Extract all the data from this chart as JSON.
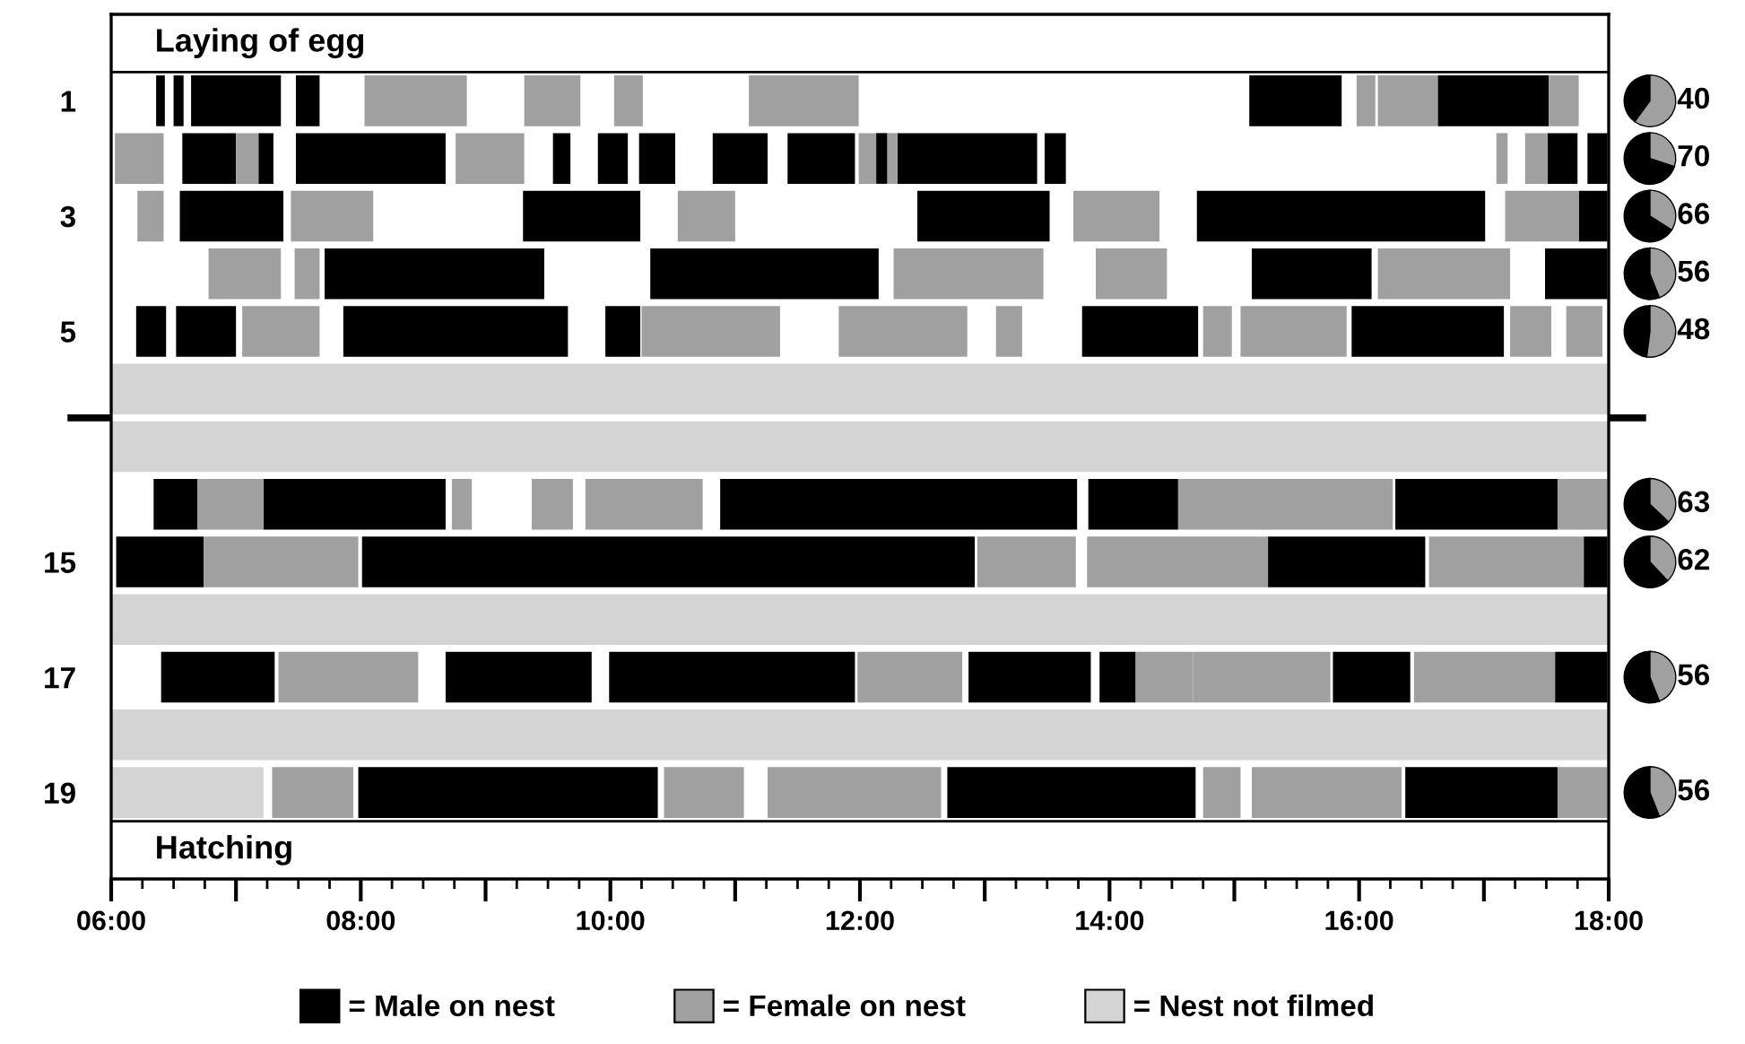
{
  "chart_data": [
    {
      "type": "bar",
      "orientation": "horizontal",
      "categories": [
        null,
        "1",
        null,
        "3",
        null,
        "5",
        null,
        null,
        null,
        "15",
        null,
        "17",
        null,
        "19",
        null
      ],
      "xlim": [
        6,
        18
      ],
      "xticks": [
        {
          "value": 6,
          "label": "06:00"
        },
        {
          "value": 7,
          "label": null
        },
        {
          "value": 8,
          "label": "08:00"
        },
        {
          "value": 9,
          "label": null
        },
        {
          "value": 10,
          "label": "10:00"
        },
        {
          "value": 11,
          "label": null
        },
        {
          "value": 12,
          "label": "12:00"
        },
        {
          "value": 13,
          "label": null
        },
        {
          "value": 14,
          "label": "14:00"
        },
        {
          "value": 15,
          "label": null
        },
        {
          "value": 16,
          "label": "16:00"
        },
        {
          "value": 17,
          "label": null
        },
        {
          "value": 18,
          "label": "18:00"
        }
      ],
      "annotations": [
        "Laying of egg",
        "Hatching"
      ],
      "legend": "bottom",
      "series": [
        {
          "name": "= Male on nest",
          "color": "#000000",
          "base": [
            null,
            6.36,
            6.57,
            6.55,
            7.71,
            6.2,
            null,
            null,
            6.34,
            6.04,
            null,
            6.4,
            null,
            7.98,
            null
          ],
          "values": [
            null,
            0.07,
            0.43,
            0.83,
            1.76,
            0.24,
            null,
            null,
            0.35,
            0.7,
            null,
            0.91,
            null,
            2.4,
            null
          ]
        },
        {
          "color": "#000000",
          "base": [
            null,
            6.5,
            7.18,
            9.3,
            10.32,
            6.52,
            null,
            null,
            7.22,
            8.01,
            null,
            8.68,
            null,
            12.7,
            null
          ],
          "values": [
            null,
            0.08,
            0.12,
            0.94,
            1.83,
            0.48,
            null,
            null,
            1.46,
            4.91,
            null,
            1.17,
            null,
            1.99,
            null
          ]
        },
        {
          "color": "#000000",
          "base": [
            null,
            6.64,
            7.48,
            12.46,
            15.14,
            7.86,
            null,
            null,
            10.88,
            15.27,
            null,
            9.99,
            null,
            16.37,
            null
          ],
          "values": [
            null,
            0.72,
            1.2,
            1.06,
            0.96,
            1.8,
            null,
            null,
            2.86,
            1.26,
            null,
            1.97,
            null,
            1.22,
            null
          ]
        },
        {
          "color": "#000000",
          "base": [
            null,
            7.48,
            9.54,
            14.7,
            17.49,
            9.96,
            null,
            null,
            13.83,
            17.8,
            null,
            12.87,
            null,
            null,
            null
          ],
          "values": [
            null,
            0.19,
            0.14,
            2.31,
            0.5,
            0.28,
            null,
            null,
            0.72,
            0.19,
            null,
            0.98,
            null,
            null,
            null
          ]
        },
        {
          "color": "#000000",
          "base": [
            null,
            15.12,
            9.9,
            17.76,
            null,
            13.78,
            null,
            null,
            16.29,
            null,
            null,
            13.92,
            null,
            null,
            null
          ],
          "values": [
            null,
            0.74,
            0.24,
            0.23,
            null,
            0.93,
            null,
            null,
            1.3,
            null,
            null,
            0.29,
            null,
            null,
            null
          ]
        },
        {
          "color": "#000000",
          "base": [
            null,
            16.63,
            10.23,
            null,
            null,
            15.94,
            null,
            null,
            null,
            null,
            null,
            15.79,
            null,
            null,
            null
          ],
          "values": [
            null,
            0.89,
            0.29,
            null,
            null,
            1.22,
            null,
            null,
            null,
            null,
            null,
            0.62,
            null,
            null,
            null
          ]
        },
        {
          "color": "#000000",
          "base": [
            null,
            null,
            10.82,
            null,
            null,
            null,
            null,
            null,
            null,
            null,
            null,
            17.57,
            null,
            null,
            null
          ],
          "values": [
            null,
            null,
            0.44,
            null,
            null,
            null,
            null,
            null,
            null,
            null,
            null,
            0.42,
            null,
            null,
            null
          ]
        },
        {
          "color": "#000000",
          "base": [
            null,
            null,
            11.42,
            null,
            null,
            null,
            null,
            null,
            null,
            null,
            null,
            null,
            null,
            null,
            null
          ],
          "values": [
            null,
            null,
            0.54,
            null,
            null,
            null,
            null,
            null,
            null,
            null,
            null,
            null,
            null,
            null,
            null
          ]
        },
        {
          "color": "#000000",
          "base": [
            null,
            null,
            12.13,
            null,
            null,
            null,
            null,
            null,
            null,
            null,
            null,
            null,
            null,
            null,
            null
          ],
          "values": [
            null,
            null,
            0.09,
            null,
            null,
            null,
            null,
            null,
            null,
            null,
            null,
            null,
            null,
            null,
            null
          ]
        },
        {
          "color": "#000000",
          "base": [
            null,
            null,
            12.3,
            null,
            null,
            null,
            null,
            null,
            null,
            null,
            null,
            null,
            null,
            null,
            null
          ],
          "values": [
            null,
            null,
            1.12,
            null,
            null,
            null,
            null,
            null,
            null,
            null,
            null,
            null,
            null,
            null,
            null
          ]
        },
        {
          "color": "#000000",
          "base": [
            null,
            null,
            13.48,
            null,
            null,
            null,
            null,
            null,
            null,
            null,
            null,
            null,
            null,
            null,
            null
          ],
          "values": [
            null,
            null,
            0.17,
            null,
            null,
            null,
            null,
            null,
            null,
            null,
            null,
            null,
            null,
            null,
            null
          ]
        },
        {
          "color": "#000000",
          "base": [
            null,
            null,
            17.51,
            null,
            null,
            null,
            null,
            null,
            null,
            null,
            null,
            null,
            null,
            null,
            null
          ],
          "values": [
            null,
            null,
            0.24,
            null,
            null,
            null,
            null,
            null,
            null,
            null,
            null,
            null,
            null,
            null,
            null
          ]
        },
        {
          "color": "#000000",
          "base": [
            null,
            null,
            17.83,
            null,
            null,
            null,
            null,
            null,
            null,
            null,
            null,
            null,
            null,
            null,
            null
          ],
          "values": [
            null,
            null,
            0.16,
            null,
            null,
            null,
            null,
            null,
            null,
            null,
            null,
            null,
            null,
            null,
            null
          ]
        },
        {
          "name": "= Female on nest",
          "color": "#a0a0a0",
          "base": [
            null,
            8.03,
            6.03,
            6.21,
            6.78,
            7.05,
            null,
            null,
            6.69,
            6.74,
            null,
            7.34,
            null,
            7.29,
            null
          ],
          "values": [
            null,
            0.82,
            0.39,
            0.21,
            0.58,
            0.62,
            null,
            null,
            0.53,
            1.24,
            null,
            1.12,
            null,
            0.65,
            null
          ]
        },
        {
          "color": "#a0a0a0",
          "base": [
            null,
            9.31,
            7.0,
            7.44,
            7.47,
            10.25,
            null,
            null,
            8.73,
            12.94,
            null,
            11.98,
            null,
            10.43,
            null
          ],
          "values": [
            null,
            0.45,
            0.18,
            0.66,
            0.2,
            1.11,
            null,
            null,
            0.16,
            0.79,
            null,
            0.84,
            null,
            0.64,
            null
          ]
        },
        {
          "color": "#a0a0a0",
          "base": [
            null,
            10.03,
            8.76,
            10.54,
            12.27,
            11.83,
            null,
            null,
            9.37,
            13.82,
            null,
            14.21,
            null,
            11.26,
            null
          ],
          "values": [
            null,
            0.23,
            0.55,
            0.46,
            1.2,
            1.03,
            null,
            null,
            0.33,
            1.45,
            null,
            0.46,
            null,
            1.39,
            null
          ]
        },
        {
          "color": "#a0a0a0",
          "base": [
            null,
            11.11,
            11.99,
            13.71,
            13.89,
            13.09,
            null,
            null,
            9.8,
            16.56,
            null,
            14.67,
            null,
            14.75,
            null
          ],
          "values": [
            null,
            0.88,
            0.14,
            0.69,
            0.57,
            0.21,
            null,
            null,
            0.94,
            1.24,
            null,
            1.1,
            null,
            0.3,
            null
          ]
        },
        {
          "color": "#a0a0a0",
          "base": [
            null,
            15.98,
            12.22,
            17.17,
            16.15,
            14.75,
            null,
            null,
            14.55,
            null,
            null,
            16.44,
            null,
            15.14,
            null
          ],
          "values": [
            null,
            0.15,
            0.08,
            0.59,
            1.06,
            0.23,
            null,
            null,
            1.72,
            null,
            null,
            1.13,
            null,
            1.2,
            null
          ]
        },
        {
          "color": "#a0a0a0",
          "base": [
            null,
            16.15,
            17.1,
            null,
            null,
            15.05,
            null,
            null,
            17.59,
            null,
            null,
            null,
            null,
            17.59,
            null
          ],
          "values": [
            null,
            0.48,
            0.09,
            null,
            null,
            0.85,
            null,
            null,
            0.4,
            null,
            null,
            null,
            null,
            0.4,
            null
          ]
        },
        {
          "color": "#a0a0a0",
          "base": [
            null,
            17.52,
            17.33,
            null,
            null,
            17.21,
            null,
            null,
            null,
            null,
            null,
            null,
            null,
            null,
            null
          ],
          "values": [
            null,
            0.24,
            0.18,
            null,
            null,
            0.33,
            null,
            null,
            null,
            null,
            null,
            null,
            null,
            null,
            null
          ]
        },
        {
          "color": "#a0a0a0",
          "base": [
            null,
            null,
            null,
            null,
            null,
            17.66,
            null,
            null,
            null,
            null,
            null,
            null,
            null,
            null,
            null
          ],
          "values": [
            null,
            null,
            null,
            null,
            null,
            0.29,
            null,
            null,
            null,
            null,
            null,
            null,
            null,
            null,
            null
          ]
        },
        {
          "name": "= Nest not filmed",
          "color": "#d4d4d4",
          "base": [
            null,
            null,
            null,
            null,
            null,
            null,
            6,
            6,
            null,
            null,
            6,
            null,
            6,
            6,
            null
          ],
          "values": [
            null,
            null,
            null,
            null,
            null,
            null,
            12,
            12,
            null,
            null,
            12,
            null,
            12,
            1.22,
            null
          ]
        }
      ]
    },
    {
      "type": "pie",
      "categories": [
        null,
        null
      ],
      "values": [
        40,
        60
      ],
      "colors": [
        "#000000",
        "#a0a0a0"
      ],
      "annotations": [
        "40"
      ]
    },
    {
      "type": "pie",
      "categories": [
        null,
        null
      ],
      "values": [
        70,
        30
      ],
      "colors": [
        "#000000",
        "#a0a0a0"
      ],
      "annotations": [
        "70"
      ]
    },
    {
      "type": "pie",
      "categories": [
        null,
        null
      ],
      "values": [
        66,
        34
      ],
      "colors": [
        "#000000",
        "#a0a0a0"
      ],
      "annotations": [
        "66"
      ]
    },
    {
      "type": "pie",
      "categories": [
        null,
        null
      ],
      "values": [
        56,
        44
      ],
      "colors": [
        "#000000",
        "#a0a0a0"
      ],
      "annotations": [
        "56"
      ]
    },
    {
      "type": "pie",
      "categories": [
        null,
        null
      ],
      "values": [
        48,
        52
      ],
      "colors": [
        "#000000",
        "#a0a0a0"
      ],
      "annotations": [
        "48"
      ]
    },
    {
      "type": "pie",
      "categories": [
        null,
        null
      ],
      "values": [
        63,
        37
      ],
      "colors": [
        "#000000",
        "#a0a0a0"
      ],
      "annotations": [
        "63"
      ]
    },
    {
      "type": "pie",
      "categories": [
        null,
        null
      ],
      "values": [
        62,
        38
      ],
      "colors": [
        "#000000",
        "#a0a0a0"
      ],
      "annotations": [
        "62"
      ]
    },
    {
      "type": "pie",
      "categories": [
        null,
        null
      ],
      "values": [
        56,
        44
      ],
      "colors": [
        "#000000",
        "#a0a0a0"
      ],
      "annotations": [
        "56"
      ]
    },
    {
      "type": "pie",
      "categories": [
        null,
        null
      ],
      "values": [
        56,
        44
      ],
      "colors": [
        "#000000",
        "#a0a0a0"
      ],
      "annotations": [
        "56"
      ]
    }
  ]
}
